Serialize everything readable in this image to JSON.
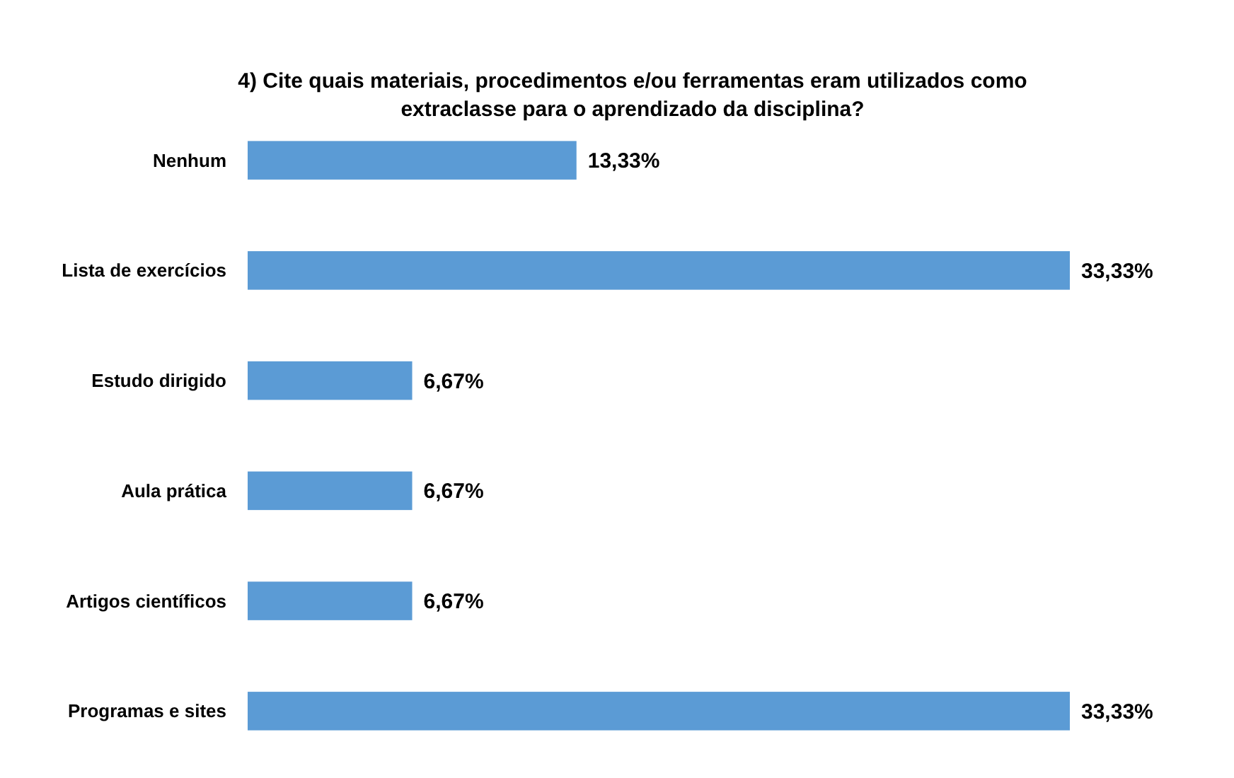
{
  "chart_data": {
    "type": "bar",
    "orientation": "horizontal",
    "title": "4) Cite quais materiais, procedimentos e/ou ferramentas eram utilizados como\nextraclasse para o aprendizado da disciplina?",
    "categories": [
      "Nenhum",
      "Lista de exercícios",
      "Estudo dirigido",
      "Aula prática",
      "Artigos científicos",
      "Programas e sites"
    ],
    "values": [
      13.33,
      33.33,
      6.67,
      6.67,
      6.67,
      33.33
    ],
    "value_labels": [
      "13,33%",
      "33,33%",
      "6,67%",
      "6,67%",
      "6,67%",
      "33,33%"
    ],
    "color": "#5b9bd5"
  }
}
